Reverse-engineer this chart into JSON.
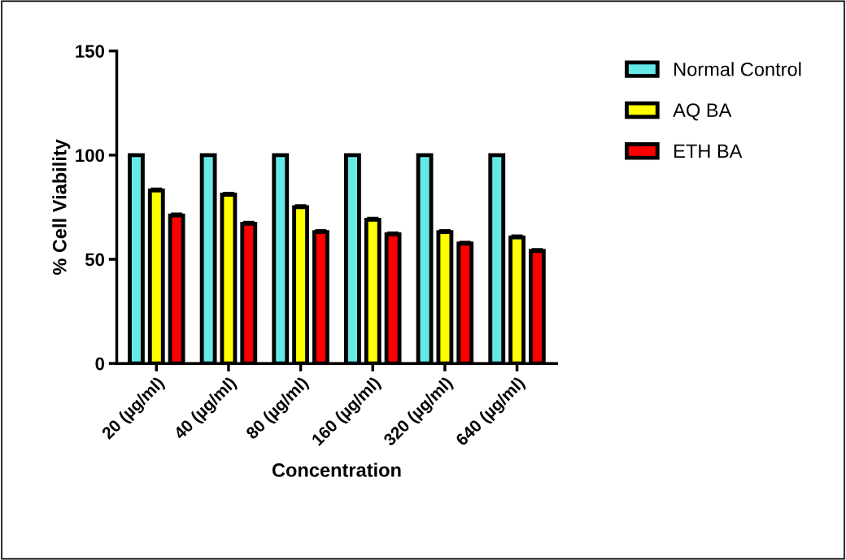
{
  "chart_data": {
    "type": "bar",
    "xlabel": "Concentration",
    "ylabel": "% Cell Viability",
    "categories": [
      "20 (µg/ml)",
      "40 (µg/ml)",
      "80 (µg/ml)",
      "160 (µg/ml)",
      "320 (µg/ml)",
      "640 (µg/ml)"
    ],
    "series": [
      {
        "name": "Normal Control",
        "color": "#66e8e8",
        "values": [
          100,
          100,
          100,
          100,
          100,
          100
        ]
      },
      {
        "name": "AQ BA",
        "color": "#ffff00",
        "values": [
          83,
          81,
          75,
          69,
          63,
          60.5
        ],
        "errors": [
          1,
          1,
          1,
          1,
          1,
          1
        ]
      },
      {
        "name": "ETH BA",
        "color": "#ff0000",
        "values": [
          71,
          67,
          63,
          62,
          57.5,
          54
        ],
        "errors": [
          1,
          1,
          1,
          1,
          1,
          1
        ]
      }
    ],
    "ylim": [
      0,
      150
    ],
    "yticks": [
      0,
      50,
      100,
      150
    ],
    "grid": false,
    "legend": "top right"
  }
}
